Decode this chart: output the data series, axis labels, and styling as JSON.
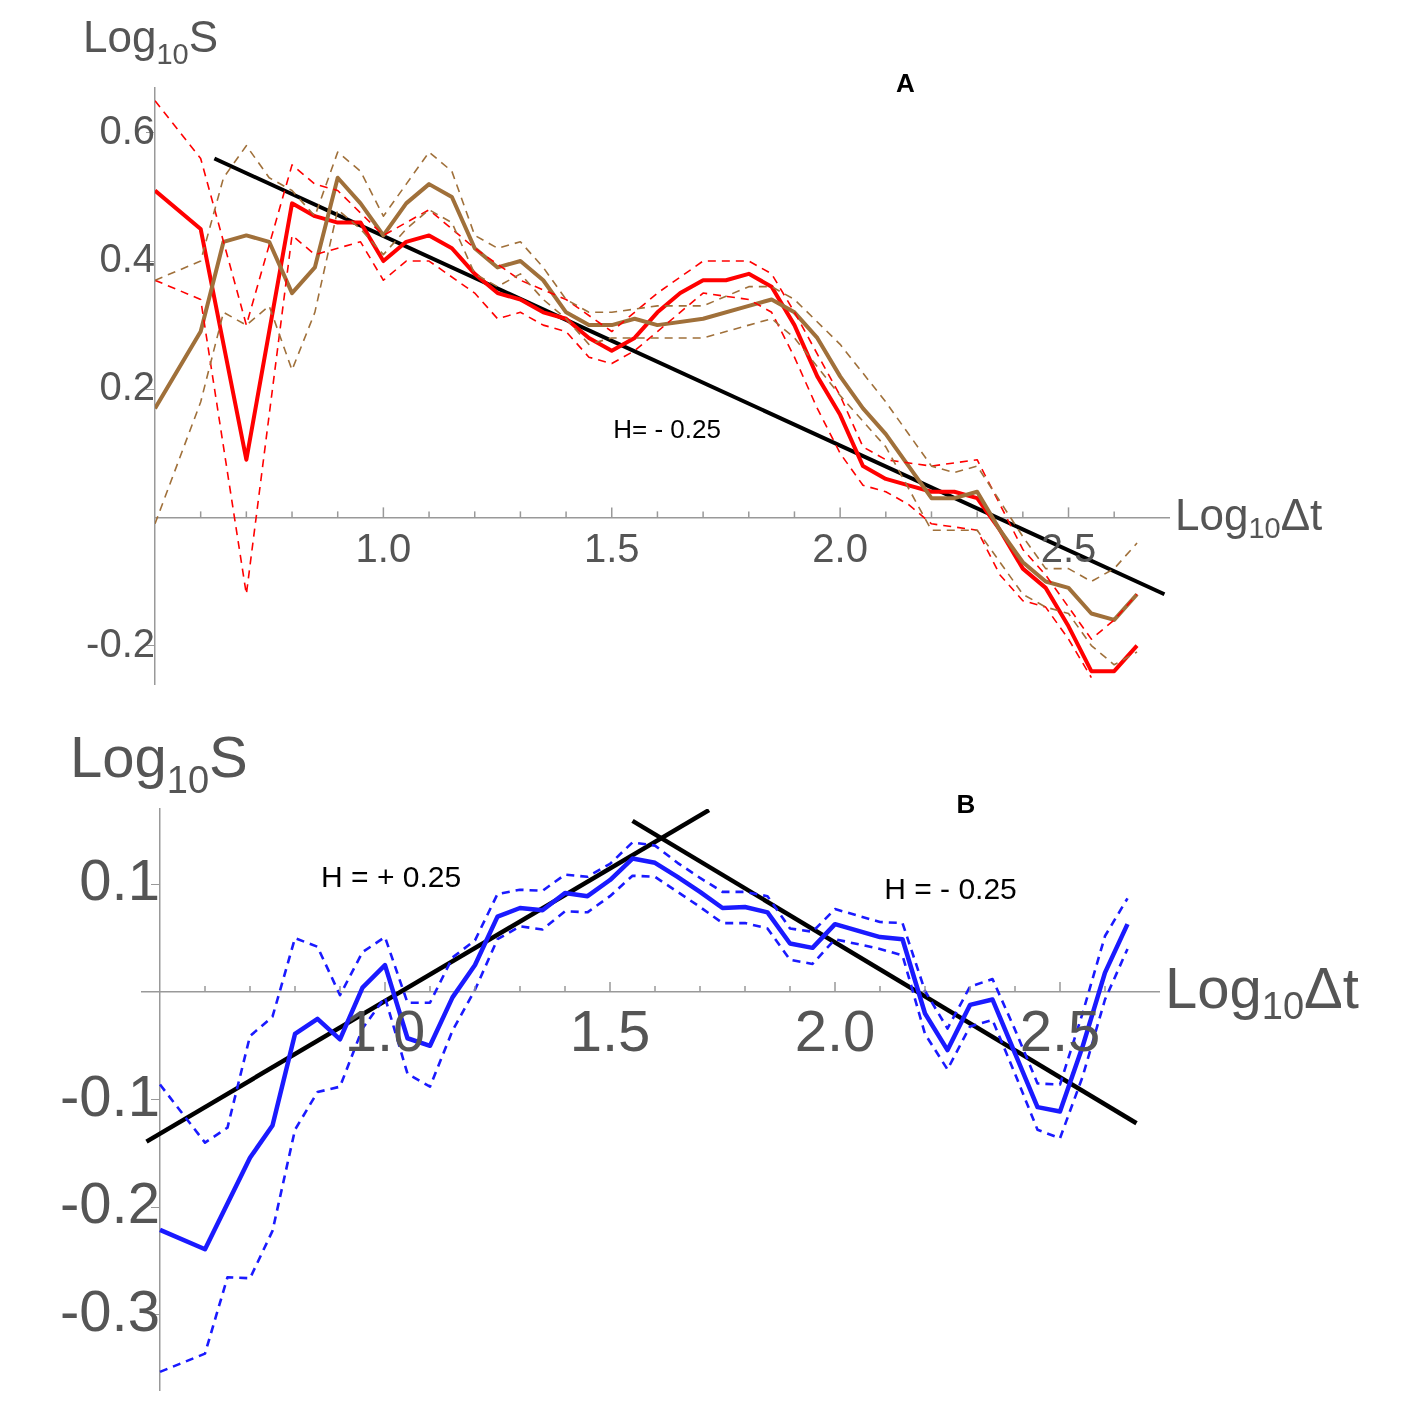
{
  "chart_data": [
    {
      "type": "line",
      "title": "A",
      "xlabel": "Log$_{10}$Δt",
      "ylabel": "Log$_{10}$S",
      "marker": "none",
      "grid": false,
      "xlim": [
        0.5,
        2.72
      ],
      "ylim": [
        -0.26,
        0.67
      ],
      "xticks": [
        {
          "value": 0.6,
          "label": null
        },
        {
          "value": 0.7,
          "label": null
        },
        {
          "value": 0.8,
          "label": null
        },
        {
          "value": 0.9,
          "label": null
        },
        {
          "value": 1,
          "label": "1.0"
        },
        {
          "value": 1.1,
          "label": null
        },
        {
          "value": 1.2,
          "label": null
        },
        {
          "value": 1.3,
          "label": null
        },
        {
          "value": 1.4,
          "label": null
        },
        {
          "value": 1.5,
          "label": "1.5"
        },
        {
          "value": 1.6,
          "label": null
        },
        {
          "value": 1.7,
          "label": null
        },
        {
          "value": 1.8,
          "label": null
        },
        {
          "value": 1.9,
          "label": null
        },
        {
          "value": 2,
          "label": "2.0"
        },
        {
          "value": 2.1,
          "label": null
        },
        {
          "value": 2.2,
          "label": null
        },
        {
          "value": 2.3,
          "label": null
        },
        {
          "value": 2.4,
          "label": null
        },
        {
          "value": 2.5,
          "label": "2.5"
        },
        {
          "value": 2.6,
          "label": null
        }
      ],
      "yticks": [
        0.6,
        0.4,
        0.2,
        -0.2
      ],
      "annotations": [
        "H= - 0.25"
      ],
      "series": [
        {
          "color": "#a0703a",
          "line_style": "dashed",
          "x": [
            0.5,
            0.6,
            0.65,
            0.7,
            0.75,
            0.8,
            0.85,
            0.9,
            0.95,
            1.0,
            1.05,
            1.1,
            1.15,
            1.2,
            1.25,
            1.3,
            1.35,
            1.4,
            1.45,
            1.5,
            1.6,
            1.7,
            1.8,
            1.85,
            1.9,
            2.0,
            2.1,
            2.2,
            2.25,
            2.3,
            2.4,
            2.45,
            2.5,
            2.55,
            2.6,
            2.65
          ],
          "values": [
            0.37,
            0.4,
            0.53,
            0.58,
            0.53,
            0.51,
            0.47,
            0.57,
            0.54,
            0.47,
            0.52,
            0.57,
            0.54,
            0.44,
            0.42,
            0.43,
            0.39,
            0.34,
            0.32,
            0.32,
            0.33,
            0.33,
            0.36,
            0.36,
            0.34,
            0.27,
            0.18,
            0.08,
            0.07,
            0.08,
            -0.03,
            -0.08,
            -0.08,
            -0.1,
            -0.08,
            -0.04
          ]
        },
        {
          "color": "#a0703a",
          "line_style": "dashed",
          "x": [
            0.5,
            0.6,
            0.65,
            0.7,
            0.75,
            0.8,
            0.85,
            0.9,
            0.95,
            1.0,
            1.05,
            1.1,
            1.15,
            1.2,
            1.25,
            1.3,
            1.35,
            1.4,
            1.45,
            1.5,
            1.6,
            1.7,
            1.8,
            1.85,
            1.9,
            2.0,
            2.1,
            2.2,
            2.25,
            2.3,
            2.4,
            2.45,
            2.5,
            2.55,
            2.6,
            2.65
          ],
          "values": [
            -0.01,
            0.18,
            0.32,
            0.3,
            0.33,
            0.23,
            0.32,
            0.48,
            0.45,
            0.41,
            0.45,
            0.48,
            0.46,
            0.38,
            0.36,
            0.38,
            0.34,
            0.31,
            0.27,
            0.28,
            0.28,
            0.28,
            0.3,
            0.31,
            0.28,
            0.19,
            0.11,
            -0.02,
            -0.02,
            -0.02,
            -0.12,
            -0.14,
            -0.15,
            -0.2,
            -0.23,
            -0.21
          ]
        },
        {
          "color": "#ff0000",
          "line_style": "dashed",
          "x": [
            0.5,
            0.6,
            0.7,
            0.8,
            0.85,
            0.9,
            1.0,
            1.1,
            1.2,
            1.3,
            1.4,
            1.5,
            1.6,
            1.7,
            1.8,
            1.85,
            1.9,
            2.0,
            2.05,
            2.1,
            2.2,
            2.3,
            2.4,
            2.45,
            2.5,
            2.55,
            2.6,
            2.65
          ],
          "values": [
            0.65,
            0.56,
            0.3,
            0.55,
            0.52,
            0.51,
            0.44,
            0.48,
            0.42,
            0.37,
            0.34,
            0.29,
            0.35,
            0.4,
            0.4,
            0.38,
            0.32,
            0.19,
            0.11,
            0.09,
            0.08,
            0.09,
            -0.05,
            -0.09,
            -0.14,
            -0.19,
            -0.16,
            -0.12
          ]
        },
        {
          "color": "#ff0000",
          "line_style": "dashed",
          "x": [
            0.5,
            0.6,
            0.7,
            0.8,
            0.85,
            0.9,
            0.95,
            1.0,
            1.05,
            1.1,
            1.2,
            1.25,
            1.3,
            1.35,
            1.4,
            1.45,
            1.5,
            1.55,
            1.6,
            1.7,
            1.8,
            1.85,
            1.9,
            1.95,
            2.0,
            2.05,
            2.1,
            2.15,
            2.2,
            2.3,
            2.35,
            2.4,
            2.45,
            2.5,
            2.55
          ],
          "values": [
            0.37,
            0.34,
            -0.12,
            0.44,
            0.41,
            0.42,
            0.43,
            0.37,
            0.4,
            0.4,
            0.35,
            0.31,
            0.32,
            0.3,
            0.29,
            0.25,
            0.24,
            0.26,
            0.29,
            0.35,
            0.34,
            0.32,
            0.25,
            0.17,
            0.1,
            0.05,
            0.04,
            0.02,
            -0.01,
            -0.02,
            -0.09,
            -0.13,
            -0.14,
            -0.19,
            -0.25
          ]
        },
        {
          "color": "#a0703a",
          "line_style": "solid",
          "x": [
            0.5,
            0.6,
            0.65,
            0.7,
            0.75,
            0.8,
            0.85,
            0.9,
            0.95,
            1.0,
            1.05,
            1.1,
            1.15,
            1.2,
            1.25,
            1.3,
            1.35,
            1.4,
            1.45,
            1.5,
            1.55,
            1.6,
            1.7,
            1.8,
            1.85,
            1.9,
            1.95,
            2.0,
            2.05,
            2.1,
            2.15,
            2.2,
            2.25,
            2.3,
            2.35,
            2.4,
            2.45,
            2.5,
            2.55,
            2.6,
            2.65
          ],
          "values": [
            0.17,
            0.29,
            0.43,
            0.44,
            0.43,
            0.35,
            0.39,
            0.53,
            0.49,
            0.44,
            0.49,
            0.52,
            0.5,
            0.42,
            0.39,
            0.4,
            0.37,
            0.32,
            0.3,
            0.3,
            0.31,
            0.3,
            0.31,
            0.33,
            0.34,
            0.32,
            0.28,
            0.22,
            0.17,
            0.13,
            0.08,
            0.03,
            0.03,
            0.04,
            -0.02,
            -0.07,
            -0.1,
            -0.11,
            -0.15,
            -0.16,
            -0.12
          ]
        },
        {
          "color": "#ff0000",
          "line_style": "solid",
          "x": [
            0.5,
            0.6,
            0.7,
            0.8,
            0.85,
            0.9,
            0.95,
            1.0,
            1.05,
            1.1,
            1.15,
            1.2,
            1.25,
            1.3,
            1.35,
            1.4,
            1.45,
            1.5,
            1.55,
            1.6,
            1.65,
            1.7,
            1.75,
            1.8,
            1.85,
            1.9,
            1.95,
            2.0,
            2.05,
            2.1,
            2.15,
            2.2,
            2.25,
            2.3,
            2.35,
            2.4,
            2.45,
            2.5,
            2.55,
            2.6,
            2.65
          ],
          "values": [
            0.51,
            0.45,
            0.09,
            0.49,
            0.47,
            0.46,
            0.46,
            0.4,
            0.43,
            0.44,
            0.42,
            0.38,
            0.35,
            0.34,
            0.32,
            0.31,
            0.28,
            0.26,
            0.28,
            0.32,
            0.35,
            0.37,
            0.37,
            0.38,
            0.36,
            0.3,
            0.22,
            0.16,
            0.08,
            0.06,
            0.05,
            0.04,
            0.04,
            0.03,
            -0.02,
            -0.08,
            -0.11,
            -0.17,
            -0.24,
            -0.24,
            -0.2
          ]
        },
        {
          "color": "#000000",
          "line_style": "solid",
          "x": [
            0.63,
            2.71
          ],
          "values": [
            0.56,
            -0.12
          ]
        }
      ]
    },
    {
      "type": "line",
      "title": "B",
      "xlabel": "Log$_{10}$Δt",
      "ylabel": "Log$_{10}$S",
      "marker": "none",
      "grid": false,
      "xlim": [
        0.46,
        2.72
      ],
      "ylim": [
        -0.37,
        0.17
      ],
      "xticks": [
        {
          "value": 0.6,
          "label": null
        },
        {
          "value": 0.7,
          "label": null
        },
        {
          "value": 0.8,
          "label": null
        },
        {
          "value": 0.9,
          "label": null
        },
        {
          "value": 1,
          "label": "1.0"
        },
        {
          "value": 1.1,
          "label": null
        },
        {
          "value": 1.2,
          "label": null
        },
        {
          "value": 1.3,
          "label": null
        },
        {
          "value": 1.4,
          "label": null
        },
        {
          "value": 1.5,
          "label": "1.5"
        },
        {
          "value": 1.6,
          "label": null
        },
        {
          "value": 1.7,
          "label": null
        },
        {
          "value": 1.8,
          "label": null
        },
        {
          "value": 1.9,
          "label": null
        },
        {
          "value": 2,
          "label": "2.0"
        },
        {
          "value": 2.1,
          "label": null
        },
        {
          "value": 2.2,
          "label": null
        },
        {
          "value": 2.3,
          "label": null
        },
        {
          "value": 2.4,
          "label": null
        },
        {
          "value": 2.5,
          "label": "2.5"
        },
        {
          "value": 2.6,
          "label": null
        }
      ],
      "yticks": [
        0.1,
        -0.1,
        -0.2,
        -0.3
      ],
      "annotations": [
        "H = + 0.25",
        "H = - 0.25"
      ],
      "series": [
        {
          "color": "#1a1aff",
          "line_style": "dashed",
          "x": [
            0.5,
            0.6,
            0.65,
            0.7,
            0.75,
            0.8,
            0.85,
            0.9,
            0.95,
            1.0,
            1.05,
            1.1,
            1.15,
            1.2,
            1.25,
            1.3,
            1.35,
            1.4,
            1.45,
            1.5,
            1.55,
            1.6,
            1.65,
            1.7,
            1.75,
            1.8,
            1.85,
            1.9,
            1.95,
            2.0,
            2.1,
            2.15,
            2.2,
            2.25,
            2.3,
            2.35,
            2.4,
            2.45,
            2.5,
            2.55,
            2.6,
            2.65
          ],
          "values": [
            -0.086,
            -0.14,
            -0.126,
            -0.041,
            -0.023,
            0.05,
            0.042,
            -0.003,
            0.037,
            0.051,
            -0.01,
            -0.01,
            0.032,
            0.048,
            0.091,
            0.095,
            0.094,
            0.109,
            0.107,
            0.119,
            0.139,
            0.136,
            0.12,
            0.106,
            0.093,
            0.093,
            0.089,
            0.059,
            0.056,
            0.077,
            0.065,
            0.064,
            0.001,
            -0.034,
            0.005,
            0.012,
            -0.035,
            -0.085,
            -0.086,
            -0.02,
            0.052,
            0.087
          ]
        },
        {
          "color": "#1a1aff",
          "line_style": "dashed",
          "x": [
            0.5,
            0.6,
            0.65,
            0.7,
            0.75,
            0.8,
            0.85,
            0.9,
            0.95,
            1.0,
            1.05,
            1.1,
            1.15,
            1.2,
            1.25,
            1.3,
            1.35,
            1.4,
            1.45,
            1.5,
            1.55,
            1.6,
            1.65,
            1.7,
            1.75,
            1.8,
            1.85,
            1.9,
            1.95,
            2.0,
            2.1,
            2.15,
            2.2,
            2.25,
            2.3,
            2.35,
            2.4,
            2.45,
            2.5,
            2.55,
            2.6,
            2.65
          ],
          "values": [
            -0.353,
            -0.336,
            -0.265,
            -0.266,
            -0.222,
            -0.128,
            -0.093,
            -0.088,
            -0.034,
            -0.005,
            -0.076,
            -0.088,
            -0.036,
            0.002,
            0.049,
            0.061,
            0.058,
            0.075,
            0.074,
            0.089,
            0.108,
            0.107,
            0.093,
            0.079,
            0.064,
            0.064,
            0.059,
            0.03,
            0.026,
            0.049,
            0.04,
            0.034,
            -0.039,
            -0.072,
            -0.032,
            -0.026,
            -0.076,
            -0.128,
            -0.136,
            -0.079,
            -0.007,
            0.04
          ]
        },
        {
          "color": "#1a1aff",
          "line_style": "solid",
          "x": [
            0.5,
            0.6,
            0.7,
            0.75,
            0.8,
            0.85,
            0.9,
            0.95,
            1.0,
            1.05,
            1.1,
            1.15,
            1.2,
            1.25,
            1.3,
            1.35,
            1.4,
            1.45,
            1.5,
            1.55,
            1.6,
            1.65,
            1.7,
            1.75,
            1.8,
            1.85,
            1.9,
            1.95,
            2.0,
            2.05,
            2.1,
            2.15,
            2.2,
            2.25,
            2.3,
            2.35,
            2.4,
            2.45,
            2.5,
            2.55,
            2.6,
            2.65
          ],
          "values": [
            -0.221,
            -0.239,
            -0.154,
            -0.124,
            -0.039,
            -0.025,
            -0.044,
            0.004,
            0.025,
            -0.043,
            -0.05,
            -0.005,
            0.025,
            0.07,
            0.078,
            0.076,
            0.092,
            0.089,
            0.104,
            0.124,
            0.12,
            0.107,
            0.093,
            0.078,
            0.079,
            0.074,
            0.045,
            0.041,
            0.063,
            0.057,
            0.051,
            0.049,
            -0.02,
            -0.054,
            -0.012,
            -0.007,
            -0.057,
            -0.107,
            -0.111,
            -0.051,
            0.018,
            0.063
          ]
        },
        {
          "color": "#000000",
          "line_style": "solid",
          "x": [
            0.47,
            1.72
          ],
          "values": [
            -0.139,
            0.169
          ]
        },
        {
          "color": "#000000",
          "line_style": "solid",
          "x": [
            1.55,
            2.67
          ],
          "values": [
            0.159,
            -0.122
          ]
        }
      ]
    }
  ]
}
